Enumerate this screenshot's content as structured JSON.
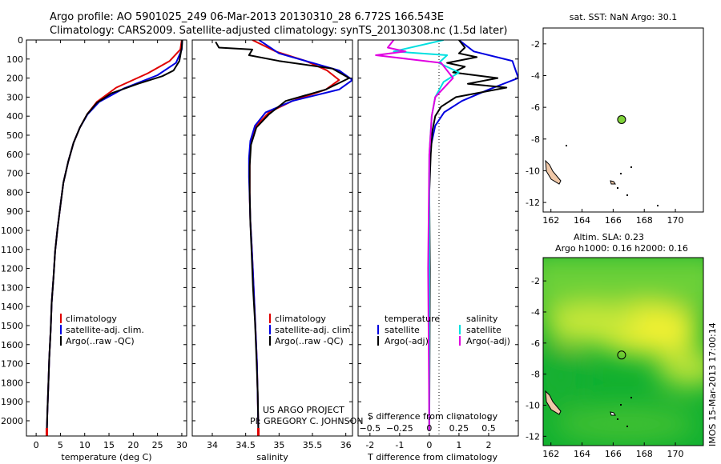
{
  "header": {
    "line1": "Argo profile: AO 5901025_249 06-Mar-2013 20130310_28 6.772S 166.543E",
    "line2": "Climatology: CARS2009. Satellite-adjusted climatology: synTS_20130308.nc (1.5d later)"
  },
  "legends": {
    "climatology": "climatology",
    "satellite_adj": "satellite-adj. clim.",
    "argo_raw": "Argo(..raw -QC)",
    "temperature": "temperature",
    "salinity": "salinity",
    "satellite": "satellite",
    "argo_adj": "Argo(-adj)"
  },
  "credit": {
    "line1": "US ARGO PROJECT",
    "line2": "PI: GREGORY C. JOHNSON"
  },
  "map_sst": {
    "title": "sat. SST: NaN Argo: 30.1"
  },
  "map_sla": {
    "title1": "Altim. SLA: 0.23",
    "title2": "Argo h1000: 0.16 h2000: 0.16"
  },
  "imos_stamp": "IMOS 15-Mar-2013 17:00:14",
  "colors": {
    "climatology": "#e00000",
    "satellite": "#0000e0",
    "argo": "#000000",
    "satellite_salinity": "#00e0e0",
    "argo_salinity_diff": "#e000e0",
    "float_marker_sst": "#7fd23a",
    "sla_low": "#10b030",
    "sla_high": "#f0f030",
    "land": "#f0c8a8"
  },
  "chart_data": [
    {
      "type": "line",
      "xlabel": "temperature (deg C)",
      "ylabel": "",
      "xlim": [
        -2,
        31
      ],
      "ylim": [
        2080,
        0
      ],
      "xticks": [
        0,
        5,
        10,
        15,
        20,
        25,
        30
      ],
      "yticks": [
        0,
        100,
        200,
        300,
        400,
        500,
        600,
        700,
        800,
        900,
        1000,
        1100,
        1200,
        1300,
        1400,
        1500,
        1600,
        1700,
        1800,
        1900,
        2000
      ],
      "series": [
        {
          "name": "climatology",
          "x": [
            30.0,
            29.7,
            27.5,
            23.0,
            16.5,
            12.5,
            10.5,
            9.0,
            7.7,
            6.6,
            5.6,
            5.0,
            4.4,
            3.9,
            3.6,
            3.2,
            3.0,
            2.7,
            2.5,
            2.3,
            2.2
          ],
          "y": [
            0,
            50,
            110,
            175,
            250,
            325,
            390,
            460,
            540,
            640,
            750,
            870,
            990,
            1110,
            1240,
            1380,
            1520,
            1670,
            1820,
            1960,
            2050
          ]
        },
        {
          "name": "satellite-adj. clim.",
          "x": [
            30.1,
            30.0,
            28.8,
            25.0,
            18.0,
            13.0,
            10.6,
            9.0,
            7.7,
            6.6,
            5.6,
            5.0,
            4.4,
            3.9,
            3.6,
            3.2,
            3.0,
            2.7,
            2.5,
            2.3,
            2.2
          ],
          "y": [
            0,
            50,
            120,
            185,
            255,
            325,
            390,
            460,
            540,
            640,
            750,
            870,
            990,
            1110,
            1240,
            1380,
            1520,
            1670,
            1820,
            1960,
            2050
          ]
        },
        {
          "name": "Argo(..raw -QC)",
          "x": [
            30.1,
            30.0,
            29.5,
            28.3,
            26.0,
            21.0,
            15.5,
            12.5,
            10.5,
            9.0,
            7.7,
            6.6,
            5.6,
            5.0,
            4.4,
            3.9,
            3.6,
            3.2,
            3.0,
            2.7,
            2.5,
            2.3,
            2.2
          ],
          "y": [
            0,
            40,
            110,
            160,
            190,
            230,
            280,
            330,
            390,
            460,
            540,
            640,
            750,
            870,
            990,
            1110,
            1240,
            1380,
            1520,
            1670,
            1820,
            1960,
            2050
          ]
        }
      ]
    },
    {
      "type": "line",
      "xlabel": "salinity",
      "ylabel": "",
      "xlim": [
        33.7,
        36.1
      ],
      "ylim": [
        2080,
        0
      ],
      "xticks": [
        34,
        34.5,
        35,
        35.5,
        36
      ],
      "xticklabels": [
        "34",
        "34.5",
        "35",
        "35.5",
        "36"
      ],
      "series": [
        {
          "name": "climatology",
          "x": [
            34.6,
            34.95,
            35.4,
            35.72,
            35.9,
            35.7,
            35.2,
            34.85,
            34.66,
            34.58,
            34.56,
            34.56,
            34.56,
            34.57,
            34.59,
            34.61,
            34.63,
            34.65,
            34.67,
            34.68,
            34.69
          ],
          "y": [
            0,
            60,
            110,
            160,
            210,
            260,
            320,
            380,
            450,
            530,
            620,
            720,
            830,
            950,
            1080,
            1220,
            1380,
            1540,
            1700,
            1880,
            2050
          ]
        },
        {
          "name": "satellite-adj. clim.",
          "x": [
            34.7,
            35.0,
            35.5,
            35.9,
            36.1,
            35.9,
            35.2,
            34.8,
            34.64,
            34.57,
            34.55,
            34.55,
            34.56,
            34.57,
            34.59,
            34.61,
            34.63,
            34.65,
            34.67,
            34.68,
            34.69
          ],
          "y": [
            0,
            70,
            120,
            160,
            210,
            260,
            320,
            380,
            450,
            530,
            620,
            720,
            830,
            950,
            1080,
            1220,
            1380,
            1540,
            1700,
            1880,
            2050
          ]
        },
        {
          "name": "Argo(..raw -QC)",
          "x": [
            34.05,
            34.1,
            34.6,
            34.55,
            35.0,
            35.8,
            36.05,
            35.7,
            35.1,
            34.85,
            34.66,
            34.58,
            34.56,
            34.56,
            34.57,
            34.59,
            34.61,
            34.64,
            34.66,
            34.68,
            34.69
          ],
          "y": [
            10,
            40,
            50,
            80,
            110,
            150,
            200,
            260,
            320,
            390,
            460,
            550,
            660,
            800,
            960,
            1130,
            1300,
            1480,
            1660,
            1850,
            2050
          ]
        }
      ]
    },
    {
      "type": "line",
      "xlabel": "T difference from climatology",
      "xlabel2": "S difference from climatology",
      "ylabel": "",
      "xlim": [
        -2.4,
        3.0
      ],
      "ylim": [
        2080,
        0
      ],
      "xticks": [
        -2,
        -1,
        0,
        1,
        2
      ],
      "xticks2": [
        -0.5,
        -0.25,
        0,
        0.25,
        0.5
      ],
      "xticklabels2": [
        "−0.5",
        "−0.25",
        "0",
        "0.25",
        "0.5"
      ],
      "series": [
        {
          "name": "temperature satellite",
          "x": [
            1.0,
            1.5,
            2.8,
            3.0,
            2.0,
            1.1,
            0.5,
            0.2,
            0.05,
            0.0,
            0.0,
            0.0,
            0.0,
            0.0
          ],
          "y": [
            0,
            60,
            110,
            200,
            260,
            320,
            380,
            450,
            560,
            700,
            900,
            1200,
            1600,
            2050
          ]
        },
        {
          "name": "temperature Argo(-adj)",
          "x": [
            1.0,
            1.2,
            1.0,
            1.6,
            0.6,
            1.2,
            0.8,
            2.3,
            1.3,
            2.6,
            0.9,
            0.4,
            0.2,
            0.1,
            0.05,
            0.0,
            0.02,
            0.0
          ],
          "y": [
            0,
            40,
            70,
            90,
            120,
            140,
            170,
            200,
            230,
            250,
            300,
            350,
            400,
            480,
            600,
            800,
            1200,
            2050
          ]
        },
        {
          "name": "salinity satellite",
          "x": [
            0.12,
            -0.3,
            0.15,
            0.08,
            0.25,
            0.12,
            0.05,
            0.02,
            0.0,
            0.0,
            0.0
          ],
          "y": [
            0,
            60,
            80,
            120,
            170,
            220,
            300,
            400,
            600,
            1200,
            2050
          ]
        },
        {
          "name": "salinity Argo(-adj)",
          "x": [
            -0.3,
            -0.35,
            -0.2,
            -0.45,
            0.1,
            0.2,
            0.05,
            0.02,
            0.0,
            -0.01,
            0.0
          ],
          "y": [
            0,
            40,
            60,
            80,
            120,
            200,
            300,
            400,
            600,
            1200,
            2050
          ]
        }
      ]
    },
    {
      "type": "scatter",
      "title": "sat. SST: NaN Argo: 30.1",
      "xlim": [
        161.5,
        171.8
      ],
      "ylim": [
        -12.6,
        -1
      ],
      "xticks": [
        162,
        164,
        166,
        168,
        170
      ],
      "yticks": [
        -2,
        -4,
        -6,
        -8,
        -10,
        -12
      ],
      "points": [
        {
          "name": "Argo float",
          "x": 166.543,
          "y": -6.772
        }
      ]
    },
    {
      "type": "heatmap",
      "title": "Altim. SLA: 0.23 Argo h1000: 0.16 h2000: 0.16",
      "xlim": [
        161.5,
        171.8
      ],
      "ylim": [
        -12.6,
        -0.5
      ],
      "xticks": [
        162,
        164,
        166,
        168,
        170
      ],
      "yticks": [
        -2,
        -4,
        -6,
        -8,
        -10,
        -12
      ],
      "points": [
        {
          "name": "Argo float",
          "x": 166.543,
          "y": -6.772
        }
      ]
    }
  ]
}
